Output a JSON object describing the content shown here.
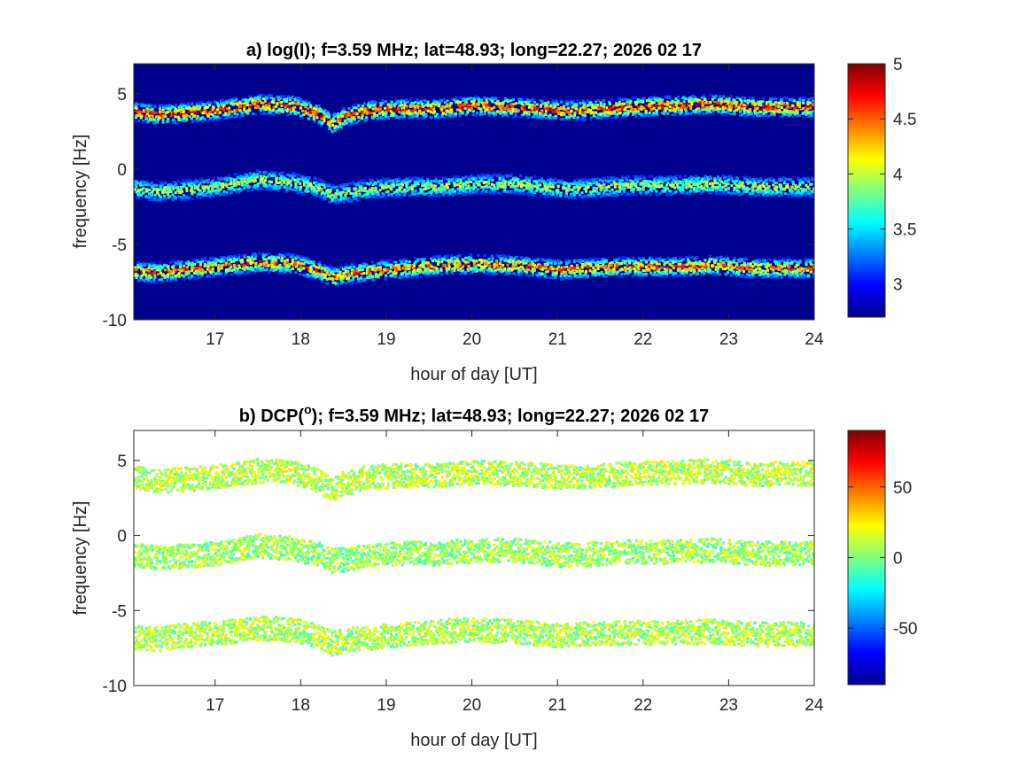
{
  "chart_data": [
    {
      "type": "heatmap",
      "title": "a) log(I); f=3.59 MHz;  lat=48.93; long=22.27; 2026 02 17",
      "xlabel": "hour of day [UT]",
      "ylabel": "frequency [Hz]",
      "xlim": [
        16.05,
        24
      ],
      "ylim": [
        -10,
        7
      ],
      "xticks": [
        17,
        18,
        19,
        20,
        21,
        22,
        23,
        24
      ],
      "yticks": [
        -10,
        -5,
        0,
        5
      ],
      "colorbar": {
        "min": 2.7,
        "max": 5,
        "ticks": [
          3,
          3.5,
          4,
          4.5,
          5
        ]
      },
      "background_color": "#00008f",
      "colormap": "jet",
      "traces": [
        {
          "x": [
            16.05,
            16.3,
            16.6,
            17.0,
            17.5,
            17.9,
            18.2,
            18.35,
            18.5,
            18.8,
            19.2,
            19.6,
            20.0,
            20.5,
            21.0,
            21.3,
            21.8,
            22.3,
            22.8,
            23.3,
            24.0
          ],
          "y": [
            3.8,
            3.6,
            3.7,
            3.9,
            4.3,
            4.2,
            3.6,
            3.0,
            3.5,
            3.9,
            4.0,
            4.0,
            4.2,
            4.1,
            3.9,
            3.9,
            4.1,
            4.2,
            4.3,
            4.1,
            4.1
          ],
          "intensity": 4.5
        },
        {
          "x": [
            16.05,
            16.3,
            16.6,
            17.0,
            17.5,
            17.9,
            18.2,
            18.35,
            18.5,
            18.8,
            19.2,
            19.6,
            20.0,
            20.5,
            21.0,
            21.3,
            21.8,
            22.3,
            22.8,
            23.3,
            24.0
          ],
          "y": [
            -1.3,
            -1.5,
            -1.4,
            -1.2,
            -0.7,
            -0.9,
            -1.3,
            -1.7,
            -1.6,
            -1.3,
            -1.2,
            -1.2,
            -1.0,
            -1.0,
            -1.3,
            -1.3,
            -1.1,
            -1.1,
            -1.0,
            -1.2,
            -1.2
          ],
          "intensity": 3.8
        },
        {
          "x": [
            16.05,
            16.3,
            16.6,
            17.0,
            17.5,
            17.9,
            18.2,
            18.35,
            18.5,
            18.8,
            19.2,
            19.6,
            20.0,
            20.5,
            21.0,
            21.3,
            21.8,
            22.3,
            22.8,
            23.3,
            24.0
          ],
          "y": [
            -6.8,
            -6.9,
            -6.7,
            -6.5,
            -6.2,
            -6.3,
            -6.8,
            -7.2,
            -7.0,
            -6.8,
            -6.6,
            -6.4,
            -6.3,
            -6.4,
            -6.7,
            -6.6,
            -6.5,
            -6.5,
            -6.4,
            -6.6,
            -6.6
          ],
          "intensity": 4.3
        }
      ]
    },
    {
      "type": "heatmap",
      "title": "b) DCP(",
      "title_sup": "o",
      "title_rest": "); f=3.59 MHz;  lat=48.93; long=22.27; 2026 02 17",
      "xlabel": "hour of day [UT]",
      "ylabel": "frequency [Hz]",
      "xlim": [
        16.05,
        24
      ],
      "ylim": [
        -10,
        7
      ],
      "xticks": [
        17,
        18,
        19,
        20,
        21,
        22,
        23,
        24
      ],
      "yticks": [
        -10,
        -5,
        0,
        5
      ],
      "colorbar": {
        "min": -90,
        "max": 90,
        "ticks": [
          -50,
          0,
          50
        ]
      },
      "background_color": "#ffffff",
      "colormap": "jet",
      "traces": [
        {
          "x": [
            16.05,
            16.3,
            16.6,
            17.0,
            17.5,
            17.9,
            18.2,
            18.35,
            18.5,
            18.8,
            19.2,
            19.6,
            20.0,
            20.5,
            21.0,
            21.3,
            21.8,
            22.3,
            22.8,
            23.3,
            24.0
          ],
          "y": [
            3.8,
            3.6,
            3.7,
            3.9,
            4.3,
            4.2,
            3.6,
            3.0,
            3.5,
            3.9,
            4.0,
            4.0,
            4.2,
            4.1,
            3.9,
            3.9,
            4.1,
            4.2,
            4.3,
            4.1,
            4.1
          ],
          "intensity": 10
        },
        {
          "x": [
            16.05,
            16.3,
            16.6,
            17.0,
            17.5,
            17.9,
            18.2,
            18.35,
            18.5,
            18.8,
            19.2,
            19.6,
            20.0,
            20.5,
            21.0,
            21.3,
            21.8,
            22.3,
            22.8,
            23.3,
            24.0
          ],
          "y": [
            -1.3,
            -1.5,
            -1.4,
            -1.2,
            -0.7,
            -0.9,
            -1.3,
            -1.7,
            -1.6,
            -1.3,
            -1.2,
            -1.2,
            -1.0,
            -1.0,
            -1.3,
            -1.3,
            -1.1,
            -1.1,
            -1.0,
            -1.2,
            -1.2
          ],
          "intensity": 5
        },
        {
          "x": [
            16.05,
            16.3,
            16.6,
            17.0,
            17.5,
            17.9,
            18.2,
            18.35,
            18.5,
            18.8,
            19.2,
            19.6,
            20.0,
            20.5,
            21.0,
            21.3,
            21.8,
            22.3,
            22.8,
            23.3,
            24.0
          ],
          "y": [
            -6.8,
            -6.9,
            -6.7,
            -6.5,
            -6.2,
            -6.3,
            -6.8,
            -7.2,
            -7.0,
            -6.8,
            -6.6,
            -6.4,
            -6.3,
            -6.4,
            -6.7,
            -6.6,
            -6.5,
            -6.5,
            -6.4,
            -6.6,
            -6.6
          ],
          "intensity": 8
        }
      ]
    }
  ]
}
